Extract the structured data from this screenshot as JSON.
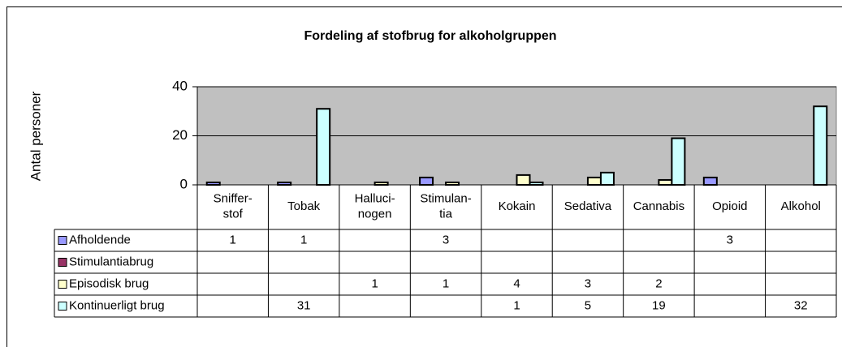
{
  "chart_data": {
    "type": "bar",
    "title": "Fordeling af stofbrug for alkoholgruppen",
    "y_label": "Antal personer",
    "categories": [
      "Sniffer-\nstof",
      "Tobak",
      "Halluci-\nnogen",
      "Stimulan-\ntia",
      "Kokain",
      "Sedativa",
      "Cannabis",
      "Opioid",
      "Alkohol"
    ],
    "series": [
      {
        "name": "Afholdende",
        "color": "#9999ff",
        "values": [
          1,
          1,
          null,
          3,
          null,
          null,
          null,
          3,
          null
        ]
      },
      {
        "name": "Stimulantiabrug",
        "color": "#993366",
        "values": [
          null,
          null,
          null,
          null,
          null,
          null,
          null,
          null,
          null
        ]
      },
      {
        "name": "Episodisk brug",
        "color": "#ffffcc",
        "values": [
          null,
          null,
          1,
          1,
          4,
          3,
          2,
          null,
          null
        ]
      },
      {
        "name": "Kontinuerligt brug",
        "color": "#ccffff",
        "values": [
          null,
          31,
          null,
          null,
          1,
          5,
          19,
          null,
          32
        ]
      }
    ],
    "ylim": [
      0,
      40
    ],
    "yticks": [
      0,
      20,
      40
    ],
    "grid": true,
    "plot_background": "#c0c0c0"
  }
}
